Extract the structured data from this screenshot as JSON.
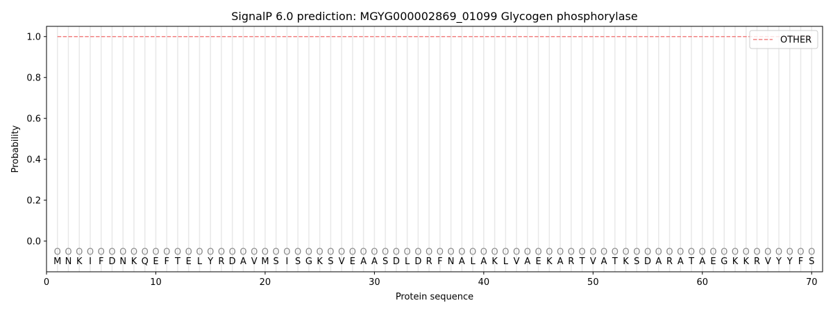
{
  "chart_data": {
    "type": "line",
    "title": "SignalP 6.0 prediction: MGYG000002869_01099 Glycogen phosphorylase",
    "xlabel": "Protein sequence",
    "ylabel": "Probability",
    "xlim": [
      0,
      71
    ],
    "ylim": [
      -0.15,
      1.05
    ],
    "xticks": [
      0,
      10,
      20,
      30,
      40,
      50,
      60,
      70
    ],
    "yticks": [
      0.0,
      0.2,
      0.4,
      0.6,
      0.8,
      1.0
    ],
    "ytick_labels": [
      "0.0",
      "0.2",
      "0.4",
      "0.6",
      "0.8",
      "1.0"
    ],
    "legend_placement": "top-right",
    "series": [
      {
        "name": "OTHER",
        "x_start": 1,
        "x_end": 70,
        "value": 1.0,
        "color": "#f08080",
        "style": "dashed"
      }
    ],
    "sequence": "MNKIFDNKQEFTELYRDAVMSISGKSVEAASDLDRFNALAKLVAEKARTVATKSDARATAEGKKRVYYFS",
    "per_residue_label": "O",
    "per_residue_label_value": -0.05,
    "grid": "vertical lines at each residue"
  }
}
